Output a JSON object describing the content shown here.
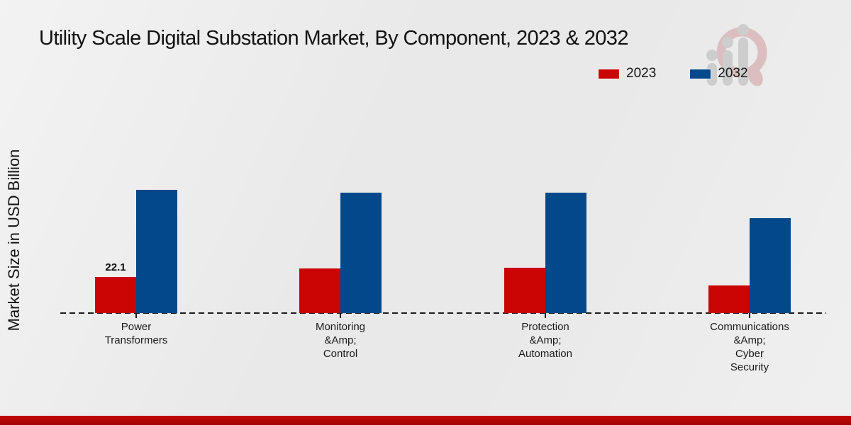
{
  "title": "Utility Scale Digital Substation Market, By Component, 2023 & 2032",
  "watermark_name": "market-research-future-logo",
  "legend": {
    "position": "top-right",
    "items": [
      {
        "label": "2023",
        "color": "#cb0404"
      },
      {
        "label": "2032",
        "color": "#02498b"
      }
    ]
  },
  "chart_data": {
    "type": "bar",
    "title": "Utility Scale Digital Substation Market, By Component, 2023 & 2032",
    "xlabel": "",
    "ylabel": "Market Size in USD Billion",
    "categories": [
      "Power Transformers",
      "Monitoring &Amp; Control",
      "Protection &Amp; Automation",
      "Communications &Amp; Cyber Security"
    ],
    "category_label_lines": [
      [
        "Power",
        "Transformers"
      ],
      [
        "Monitoring",
        "&Amp;",
        "Control"
      ],
      [
        "Protection",
        "&Amp;",
        "Automation"
      ],
      [
        "Communications",
        "&Amp;",
        "Cyber",
        "Security"
      ]
    ],
    "series": [
      {
        "name": "2023",
        "color": "#cb0404",
        "values": [
          22.1,
          27.3,
          27.7,
          16.9
        ]
      },
      {
        "name": "2032",
        "color": "#02498b",
        "values": [
          75.4,
          73.7,
          73.7,
          58.1
        ]
      }
    ],
    "value_labels": [
      {
        "series_index": 0,
        "category_index": 0,
        "text": "22.1"
      }
    ],
    "ylim": [
      0,
      80
    ],
    "y_axis_ticks_visible": false,
    "grid": false,
    "baseline_style": "dashed",
    "legend_position": "top-right"
  }
}
